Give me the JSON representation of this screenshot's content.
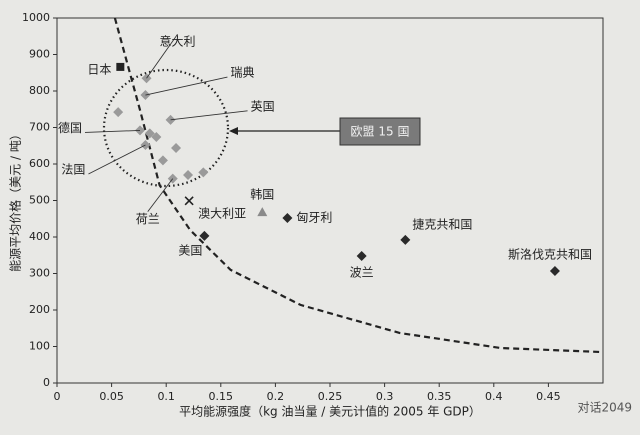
{
  "chart_data": {
    "type": "scatter",
    "xlabel": "平均能源强度（kg 油当量 / 美元计值的 2005 年 GDP）",
    "ylabel": "能源平均价格（美元 / 吨）",
    "xlim": [
      0,
      0.5
    ],
    "ylim": [
      0,
      1000
    ],
    "xticks": [
      0,
      0.05,
      0.1,
      0.15,
      0.2,
      0.25,
      0.3,
      0.35,
      0.4,
      0.45
    ],
    "yticks": [
      0,
      100,
      200,
      300,
      400,
      500,
      600,
      700,
      800,
      900,
      1000
    ],
    "series": [
      {
        "marker": "square",
        "color": "#222222",
        "x": [
          0.058
        ],
        "values": [
          866
        ],
        "labels": [
          "日本"
        ]
      },
      {
        "marker": "diamond",
        "color": "#9a9a9a",
        "x": [
          0.082,
          0.081,
          0.056,
          0.104,
          0.076,
          0.085,
          0.081,
          0.091,
          0.109,
          0.106,
          0.12,
          0.134,
          0.097
        ],
        "values": [
          835,
          789,
          742,
          721,
          692,
          684,
          652,
          674,
          644,
          560,
          570,
          577,
          610
        ],
        "labels": [
          "意大利",
          "瑞典",
          null,
          "英国",
          "德国",
          null,
          "法国",
          null,
          null,
          "荷兰",
          null,
          null,
          null
        ]
      },
      {
        "marker": "triangle",
        "color": "#8a8a8a",
        "x": [
          0.188
        ],
        "values": [
          468
        ],
        "labels": [
          "韩国"
        ]
      },
      {
        "marker": "diamond",
        "color": "#2a2a2a",
        "x": [
          0.211,
          0.279,
          0.319,
          0.456,
          0.135
        ],
        "values": [
          452,
          348,
          392,
          307,
          403
        ],
        "labels": [
          "匈牙利",
          "波兰",
          "捷克共和国",
          "斯洛伐克共和国",
          "美国"
        ]
      },
      {
        "marker": "cross",
        "color": "#222222",
        "x": [
          0.121
        ],
        "values": [
          499
        ],
        "labels": [
          "澳大利亚"
        ]
      }
    ],
    "trend": {
      "x": [
        0.053,
        0.076,
        0.094,
        0.122,
        0.159,
        0.223,
        0.314,
        0.406,
        0.498
      ],
      "values": [
        1000,
        748,
        542,
        419,
        310,
        214,
        137,
        96,
        85
      ]
    },
    "callout": "欧盟 15 国",
    "watermark": "对话2049"
  }
}
